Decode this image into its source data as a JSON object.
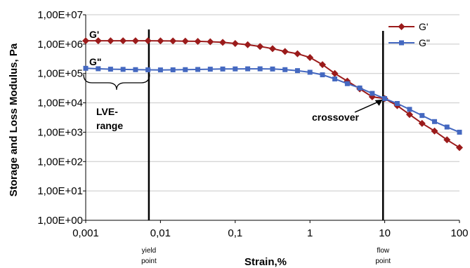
{
  "chart_data": {
    "type": "line",
    "xlabel": "Strain,%",
    "ylabel": "Storage and Loss Modulus, Pa",
    "xscale": "log",
    "yscale": "log",
    "xlim": [
      0.001,
      100
    ],
    "ylim": [
      1,
      10000000
    ],
    "x_tick_labels": [
      "0,001",
      "0,01",
      "0,1",
      "1",
      "10",
      "100"
    ],
    "y_tick_labels": [
      "1,00E+00",
      "1,00E+01",
      "1,00E+02",
      "1,00E+03",
      "1,00E+04",
      "1,00E+05",
      "1,00E+06",
      "1,00E+07"
    ],
    "grid": "horizontal",
    "legend_position": "top-right",
    "x": [
      0.001,
      0.00147,
      0.00215,
      0.00316,
      0.00464,
      0.00681,
      0.01,
      0.0147,
      0.0215,
      0.0316,
      0.0464,
      0.0681,
      0.1,
      0.147,
      0.215,
      0.316,
      0.464,
      0.681,
      1.0,
      1.47,
      2.15,
      3.16,
      4.64,
      6.81,
      10.0,
      14.7,
      21.5,
      31.6,
      46.4,
      68.1,
      100
    ],
    "series": [
      {
        "name": "G'",
        "color": "#9b1b1b",
        "marker": "diamond",
        "values": [
          1300000,
          1300000,
          1300000,
          1300000,
          1300000,
          1300000,
          1290000,
          1280000,
          1260000,
          1240000,
          1200000,
          1150000,
          1050000,
          950000,
          830000,
          700000,
          560000,
          470000,
          350000,
          200000,
          100000,
          55000,
          30000,
          16000,
          14000,
          8000,
          4000,
          2000,
          1100,
          550,
          300
        ]
      },
      {
        "name": "G\"",
        "color": "#4468c0",
        "marker": "square",
        "values": [
          150000,
          145000,
          140000,
          138000,
          135000,
          133000,
          132000,
          133000,
          135000,
          137000,
          140000,
          142000,
          143000,
          144000,
          144000,
          142000,
          135000,
          125000,
          110000,
          90000,
          65000,
          45000,
          32000,
          21000,
          14000,
          9500,
          6000,
          3700,
          2300,
          1500,
          1000
        ]
      }
    ],
    "annotations": {
      "g_prime_label": "G'",
      "g_double_prime_label": "G\"",
      "lve_line1": "LVE-",
      "lve_line2": "range",
      "crossover": "crossover",
      "yield_line1": "yield",
      "yield_line2": "point",
      "flow_line1": "flow",
      "flow_line2": "point"
    },
    "markers": {
      "yield_point_x": 0.007,
      "flow_point_x": 9.5,
      "lve_range_x": [
        0.001,
        0.007
      ],
      "crossover_point": {
        "x": 10.0,
        "y": 14500
      }
    }
  }
}
